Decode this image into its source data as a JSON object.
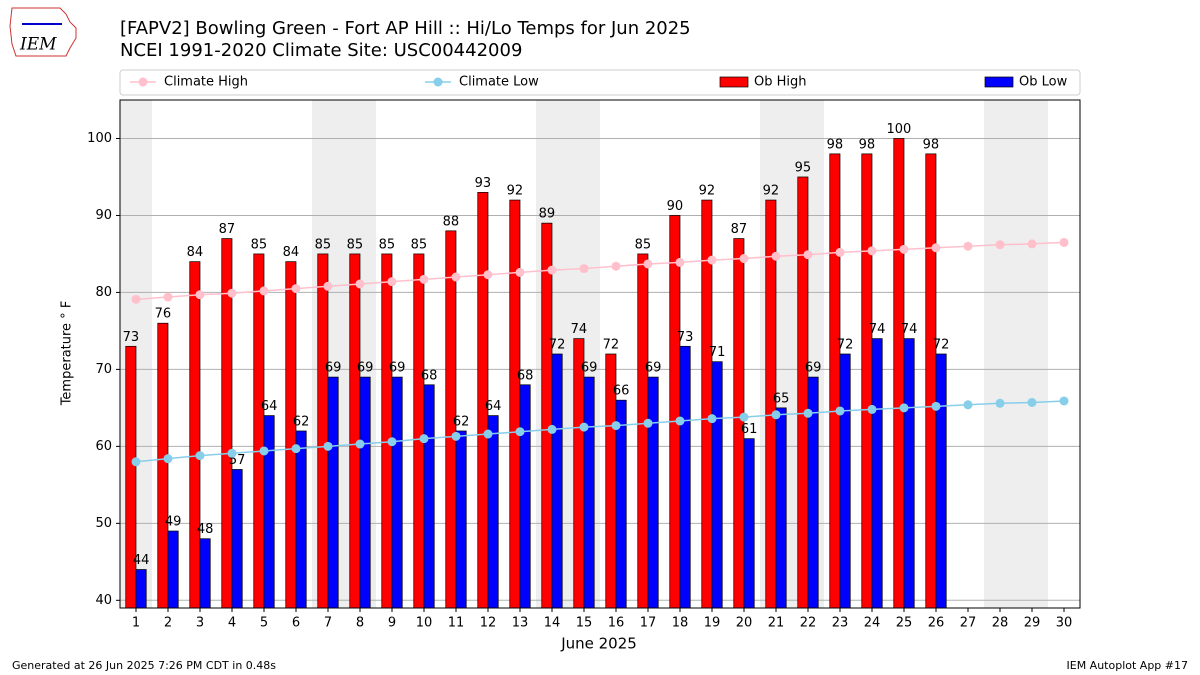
{
  "logo": "IEM",
  "footer": {
    "left": "Generated at 26 Jun 2025 7:26 PM CDT in 0.48s",
    "right": "IEM Autoplot App #17"
  },
  "chart_data": {
    "type": "bar",
    "title": "[FAPV2] Bowling Green - Fort AP Hill :: Hi/Lo Temps for Jun 2025",
    "subtitle": "NCEI 1991-2020 Climate Site: USC00442009",
    "x_label": "June 2025",
    "y_label": "Temperature ° F",
    "categories": [
      "1",
      "2",
      "3",
      "4",
      "5",
      "6",
      "7",
      "8",
      "9",
      "10",
      "11",
      "12",
      "13",
      "14",
      "15",
      "16",
      "17",
      "18",
      "19",
      "20",
      "21",
      "22",
      "23",
      "24",
      "25",
      "26",
      "27",
      "28",
      "29",
      "30"
    ],
    "shaded_days": [
      "1",
      "7",
      "8",
      "14",
      "15",
      "21",
      "22",
      "28",
      "29"
    ],
    "ylim": [
      39,
      105
    ],
    "yticks": [
      40,
      50,
      60,
      70,
      80,
      90,
      100
    ],
    "grid": true,
    "series": [
      {
        "name": "Climate High",
        "type": "line",
        "color": "#ffc0cb",
        "values": [
          79.1,
          79.4,
          79.7,
          79.9,
          80.2,
          80.5,
          80.8,
          81.1,
          81.4,
          81.7,
          82.0,
          82.3,
          82.6,
          82.9,
          83.1,
          83.4,
          83.7,
          83.9,
          84.2,
          84.4,
          84.7,
          84.9,
          85.2,
          85.4,
          85.6,
          85.8,
          86.0,
          86.2,
          86.3,
          86.5
        ]
      },
      {
        "name": "Climate Low",
        "type": "line",
        "color": "#87ceeb",
        "values": [
          58.0,
          58.4,
          58.8,
          59.1,
          59.4,
          59.7,
          60.0,
          60.3,
          60.6,
          61.0,
          61.3,
          61.6,
          61.9,
          62.2,
          62.5,
          62.7,
          63.0,
          63.3,
          63.6,
          63.8,
          64.1,
          64.3,
          64.6,
          64.8,
          65.0,
          65.2,
          65.4,
          65.6,
          65.7,
          65.9
        ]
      },
      {
        "name": "Ob High",
        "type": "bar",
        "color": "#ff0000",
        "values": [
          73,
          76,
          84,
          87,
          85,
          84,
          85,
          85,
          85,
          85,
          88,
          93,
          92,
          89,
          74,
          72,
          85,
          90,
          92,
          87,
          92,
          95,
          98,
          98,
          100,
          98,
          null,
          null,
          null,
          null
        ]
      },
      {
        "name": "Ob Low",
        "type": "bar",
        "color": "#0000ff",
        "values": [
          44,
          49,
          48,
          57,
          64,
          62,
          69,
          69,
          69,
          68,
          62,
          64,
          68,
          72,
          69,
          66,
          69,
          73,
          71,
          61,
          65,
          69,
          72,
          74,
          74,
          72,
          null,
          null,
          null,
          null
        ]
      }
    ]
  }
}
